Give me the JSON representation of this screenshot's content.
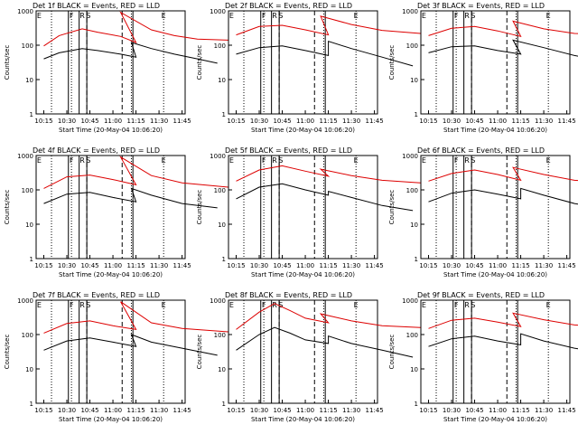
{
  "figure": {
    "background": "#ffffff",
    "colors": {
      "events": "#000000",
      "lld": "#dd0000",
      "axes": "#000000"
    }
  },
  "common": {
    "ylabel": "Counts/sec",
    "xlabel": "Start Time (20-May-04 10:06:20)",
    "xticks": [
      "10:15",
      "10:30",
      "10:45",
      "11:00",
      "11:15",
      "11:30",
      "11:45"
    ],
    "yticks": [
      "1",
      "10",
      "100",
      "1000"
    ],
    "markers": [
      "E",
      "F",
      "R",
      "S",
      "E"
    ]
  },
  "chart_data": [
    {
      "type": "line",
      "title": "Det 1f BLACK = Events, RED = LLD",
      "xlabel": "Start Time (20-May-04 10:06:20)",
      "ylabel": "Counts/sec",
      "yscale": "log",
      "ylim": [
        1,
        1000
      ],
      "series": [
        {
          "name": "LLD",
          "values": [
            [
              10.15,
              95
            ],
            [
              10.25,
              190
            ],
            [
              10.4,
              300
            ],
            [
              10.5,
              240
            ],
            [
              10.65,
              180
            ],
            [
              10.75,
              120
            ],
            [
              11.05,
              900
            ],
            [
              11.25,
              280
            ],
            [
              11.4,
              190
            ],
            [
              11.55,
              150
            ],
            [
              11.75,
              140
            ]
          ]
        },
        {
          "name": "Events",
          "values": [
            [
              10.15,
              40
            ],
            [
              10.25,
              60
            ],
            [
              10.4,
              80
            ],
            [
              10.5,
              70
            ],
            [
              10.65,
              55
            ],
            [
              10.75,
              45
            ],
            [
              11.12,
              120
            ],
            [
              11.25,
              80
            ],
            [
              11.4,
              55
            ],
            [
              11.55,
              40
            ],
            [
              11.68,
              30
            ]
          ]
        }
      ]
    },
    {
      "type": "line",
      "title": "Det 2f BLACK = Events, RED = LLD",
      "xlabel": "Start Time (20-May-04 10:06:20)",
      "ylabel": "Counts/sec",
      "yscale": "log",
      "ylim": [
        1,
        1000
      ],
      "series": [
        {
          "name": "LLD",
          "values": [
            [
              10.15,
              200
            ],
            [
              10.3,
              350
            ],
            [
              10.45,
              380
            ],
            [
              10.6,
              280
            ],
            [
              10.75,
              200
            ],
            [
              11.1,
              700
            ],
            [
              11.3,
              400
            ],
            [
              11.5,
              270
            ],
            [
              11.75,
              220
            ]
          ]
        },
        {
          "name": "Events",
          "values": [
            [
              10.15,
              55
            ],
            [
              10.3,
              85
            ],
            [
              10.45,
              95
            ],
            [
              10.6,
              70
            ],
            [
              10.75,
              50
            ],
            [
              11.15,
              130
            ],
            [
              11.3,
              80
            ],
            [
              11.5,
              45
            ],
            [
              11.7,
              25
            ]
          ]
        }
      ]
    },
    {
      "type": "line",
      "title": "Det 3f BLACK = Events, RED = LLD",
      "xlabel": "Start Time (20-May-04 10:06:20)",
      "ylabel": "Counts/sec",
      "yscale": "log",
      "ylim": [
        1,
        1000
      ],
      "series": [
        {
          "name": "LLD",
          "values": [
            [
              10.15,
              190
            ],
            [
              10.3,
              310
            ],
            [
              10.45,
              350
            ],
            [
              10.6,
              260
            ],
            [
              10.75,
              180
            ],
            [
              11.1,
              500
            ],
            [
              11.3,
              300
            ],
            [
              11.5,
              220
            ],
            [
              11.75,
              200
            ]
          ]
        },
        {
          "name": "Events",
          "values": [
            [
              10.15,
              60
            ],
            [
              10.3,
              90
            ],
            [
              10.45,
              95
            ],
            [
              10.6,
              70
            ],
            [
              10.75,
              55
            ],
            [
              11.1,
              140
            ],
            [
              11.3,
              85
            ],
            [
              11.5,
              50
            ],
            [
              11.7,
              35
            ]
          ]
        }
      ]
    },
    {
      "type": "line",
      "title": "Det 4f BLACK = Events, RED = LLD",
      "xlabel": "Start Time (20-May-04 10:06:20)",
      "ylabel": "Counts/sec",
      "yscale": "log",
      "ylim": [
        1,
        1000
      ],
      "series": [
        {
          "name": "LLD",
          "values": [
            [
              10.15,
              110
            ],
            [
              10.3,
              240
            ],
            [
              10.45,
              270
            ],
            [
              10.6,
              200
            ],
            [
              10.75,
              140
            ],
            [
              11.05,
              900
            ],
            [
              11.25,
              260
            ],
            [
              11.45,
              160
            ],
            [
              11.75,
              120
            ]
          ]
        },
        {
          "name": "Events",
          "values": [
            [
              10.15,
              40
            ],
            [
              10.3,
              75
            ],
            [
              10.45,
              85
            ],
            [
              10.6,
              60
            ],
            [
              10.75,
              45
            ],
            [
              11.12,
              110
            ],
            [
              11.25,
              70
            ],
            [
              11.45,
              40
            ],
            [
              11.68,
              30
            ]
          ]
        }
      ]
    },
    {
      "type": "line",
      "title": "Det 5f BLACK = Events, RED = LLD",
      "xlabel": "Start Time (20-May-04 10:06:20)",
      "ylabel": "Counts/sec",
      "yscale": "log",
      "ylim": [
        1,
        1000
      ],
      "series": [
        {
          "name": "LLD",
          "values": [
            [
              10.15,
              180
            ],
            [
              10.3,
              380
            ],
            [
              10.45,
              500
            ],
            [
              10.6,
              350
            ],
            [
              10.75,
              250
            ],
            [
              11.1,
              400
            ],
            [
              11.3,
              260
            ],
            [
              11.5,
              190
            ],
            [
              11.75,
              160
            ]
          ]
        },
        {
          "name": "Events",
          "values": [
            [
              10.15,
              55
            ],
            [
              10.3,
              120
            ],
            [
              10.45,
              150
            ],
            [
              10.6,
              100
            ],
            [
              10.75,
              70
            ],
            [
              11.15,
              90
            ],
            [
              11.3,
              60
            ],
            [
              11.5,
              35
            ],
            [
              11.7,
              25
            ]
          ]
        }
      ]
    },
    {
      "type": "line",
      "title": "Det 6f BLACK = Events, RED = LLD",
      "xlabel": "Start Time (20-May-04 10:06:20)",
      "ylabel": "Counts/sec",
      "yscale": "log",
      "ylim": [
        1,
        1000
      ],
      "series": [
        {
          "name": "LLD",
          "values": [
            [
              10.15,
              180
            ],
            [
              10.3,
              300
            ],
            [
              10.45,
              380
            ],
            [
              10.6,
              280
            ],
            [
              10.75,
              190
            ],
            [
              11.1,
              450
            ],
            [
              11.3,
              280
            ],
            [
              11.5,
              190
            ],
            [
              11.75,
              170
            ]
          ]
        },
        {
          "name": "Events",
          "values": [
            [
              10.15,
              45
            ],
            [
              10.3,
              80
            ],
            [
              10.45,
              100
            ],
            [
              10.6,
              75
            ],
            [
              10.75,
              55
            ],
            [
              11.15,
              110
            ],
            [
              11.3,
              70
            ],
            [
              11.5,
              40
            ],
            [
              11.7,
              28
            ]
          ]
        }
      ]
    },
    {
      "type": "line",
      "title": "Det 7f BLACK = Events, RED = LLD",
      "xlabel": "Start Time (20-May-04 10:06:20)",
      "ylabel": "Counts/sec",
      "yscale": "log",
      "ylim": [
        1,
        1000
      ],
      "series": [
        {
          "name": "LLD",
          "values": [
            [
              10.15,
              110
            ],
            [
              10.3,
              210
            ],
            [
              10.45,
              250
            ],
            [
              10.6,
              180
            ],
            [
              10.75,
              140
            ],
            [
              11.05,
              900
            ],
            [
              11.25,
              220
            ],
            [
              11.45,
              150
            ],
            [
              11.75,
              120
            ]
          ]
        },
        {
          "name": "Events",
          "values": [
            [
              10.15,
              35
            ],
            [
              10.3,
              65
            ],
            [
              10.45,
              80
            ],
            [
              10.6,
              60
            ],
            [
              10.75,
              45
            ],
            [
              11.12,
              100
            ],
            [
              11.25,
              60
            ],
            [
              11.45,
              40
            ],
            [
              11.68,
              25
            ]
          ]
        }
      ]
    },
    {
      "type": "line",
      "title": "Det 8f BLACK = Events, RED = LLD",
      "xlabel": "Start Time (20-May-04 10:06:20)",
      "ylabel": "Counts/sec",
      "yscale": "log",
      "ylim": [
        1,
        1000
      ],
      "series": [
        {
          "name": "LLD",
          "values": [
            [
              10.15,
              140
            ],
            [
              10.3,
              450
            ],
            [
              10.4,
              800
            ],
            [
              10.5,
              500
            ],
            [
              10.6,
              300
            ],
            [
              10.75,
              220
            ],
            [
              11.1,
              400
            ],
            [
              11.3,
              250
            ],
            [
              11.5,
              180
            ],
            [
              11.75,
              160
            ]
          ]
        },
        {
          "name": "Events",
          "values": [
            [
              10.15,
              35
            ],
            [
              10.3,
              100
            ],
            [
              10.4,
              160
            ],
            [
              10.5,
              110
            ],
            [
              10.6,
              70
            ],
            [
              10.75,
              55
            ],
            [
              11.15,
              90
            ],
            [
              11.3,
              55
            ],
            [
              11.5,
              35
            ],
            [
              11.7,
              22
            ]
          ]
        }
      ]
    },
    {
      "type": "line",
      "title": "Det 9f BLACK = Events, RED = LLD",
      "xlabel": "Start Time (20-May-04 10:06:20)",
      "ylabel": "Counts/sec",
      "yscale": "log",
      "ylim": [
        1,
        1000
      ],
      "series": [
        {
          "name": "LLD",
          "values": [
            [
              10.15,
              150
            ],
            [
              10.3,
              260
            ],
            [
              10.45,
              300
            ],
            [
              10.6,
              230
            ],
            [
              10.75,
              170
            ],
            [
              11.1,
              420
            ],
            [
              11.3,
              270
            ],
            [
              11.5,
              190
            ],
            [
              11.75,
              170
            ]
          ]
        },
        {
          "name": "Events",
          "values": [
            [
              10.15,
              45
            ],
            [
              10.3,
              75
            ],
            [
              10.45,
              90
            ],
            [
              10.6,
              65
            ],
            [
              10.75,
              50
            ],
            [
              11.15,
              105
            ],
            [
              11.3,
              65
            ],
            [
              11.5,
              40
            ],
            [
              11.7,
              28
            ]
          ]
        }
      ]
    }
  ]
}
